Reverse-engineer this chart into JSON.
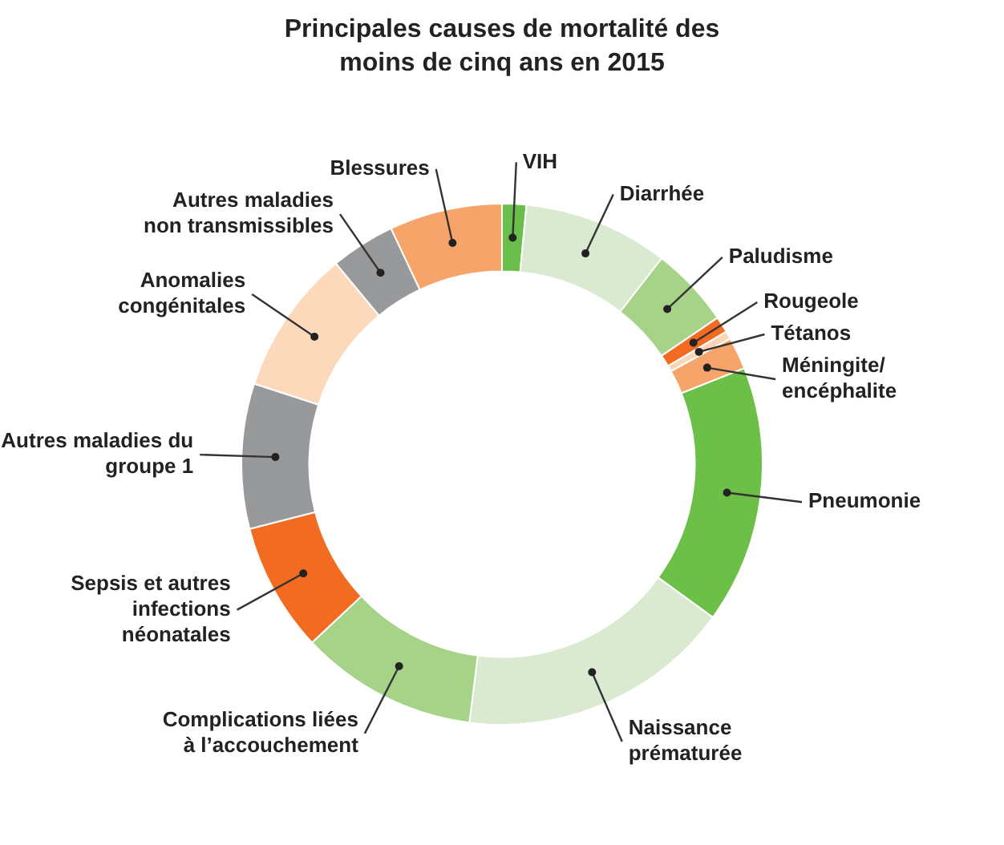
{
  "chart_data": {
    "type": "donut",
    "title": "Principales causes de mortalité des moins de cinq ans en 2015",
    "categories": [
      "VIH",
      "Diarrhée",
      "Paludisme",
      "Rougeole",
      "Tétanos",
      "Méningite/ encéphalite",
      "Pneumonie",
      "Naissance prématurée",
      "Complications liées à l’accouchement",
      "Sepsis et autres infections néonatales",
      "Autres maladies du groupe 1",
      "Anomalies congénitales",
      "Autres maladies non transmissibles",
      "Blessures"
    ],
    "values": [
      1.5,
      9,
      5,
      1,
      0.5,
      2,
      16,
      17,
      11,
      8,
      9,
      9,
      4,
      7
    ],
    "colors": [
      "#6abf4b",
      "#d9ead0",
      "#a6d388",
      "#f26b21",
      "#fcd5b5",
      "#f7a46b",
      "#6cbf47",
      "#d9ead0",
      "#a6d388",
      "#f26b21",
      "#98999b",
      "#fdd9bc",
      "#98999b",
      "#f7a46b"
    ]
  }
}
